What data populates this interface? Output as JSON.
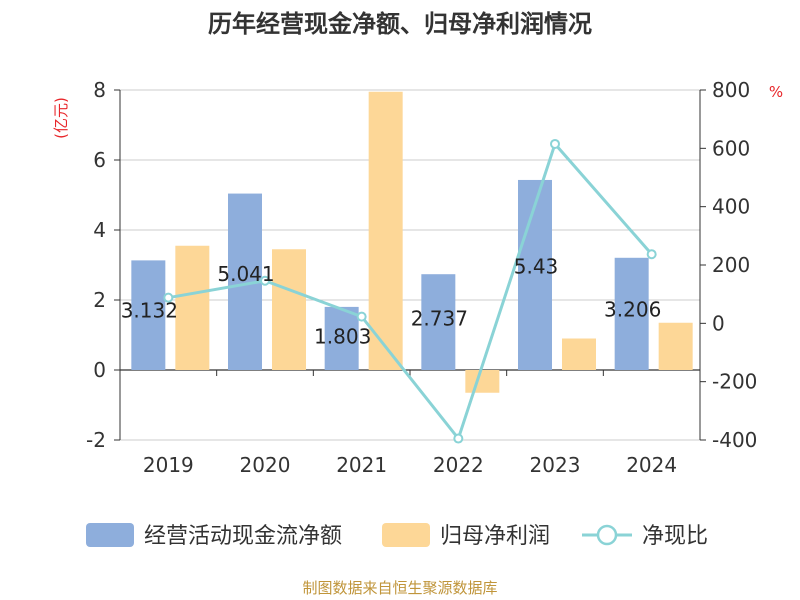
{
  "chart_data": {
    "type": "bar",
    "title": "历年经营现金净额、归母净利润情况",
    "categories": [
      "2019",
      "2020",
      "2021",
      "2022",
      "2023",
      "2024"
    ],
    "left_axis": {
      "unit": "(亿元)",
      "ylim": [
        -2,
        8
      ],
      "ticks": [
        "8",
        "6",
        "4",
        "2",
        "0",
        "-2"
      ]
    },
    "right_axis": {
      "unit": "%",
      "ylim": [
        -400,
        800
      ],
      "ticks": [
        "800",
        "600",
        "400",
        "200",
        "0",
        "-200",
        "-400"
      ]
    },
    "series": [
      {
        "name": "经营活动现金流净额",
        "kind": "bar",
        "axis": "left",
        "color": "#8eaedc",
        "values": [
          3.132,
          5.041,
          1.803,
          2.737,
          5.43,
          3.206
        ],
        "labels": [
          "3.132",
          "5.041",
          "1.803",
          "2.737",
          "5.43",
          "3.206"
        ]
      },
      {
        "name": "归母净利润",
        "kind": "bar",
        "axis": "left",
        "color": "#fdd797",
        "values": [
          3.55,
          3.45,
          7.95,
          -0.65,
          0.9,
          1.35
        ]
      },
      {
        "name": "净现比",
        "kind": "line",
        "axis": "right",
        "color": "#8ad3d6",
        "values": [
          88,
          146,
          23,
          -395,
          615,
          237
        ]
      }
    ],
    "grid": true,
    "legend_position": "bottom"
  },
  "source_note": "制图数据来自恒生聚源数据库",
  "colors": {
    "title": "#333333",
    "unit": "#e8262a",
    "axis_text": "#333333",
    "grid": "#cccccc",
    "source": "#c0953a"
  }
}
